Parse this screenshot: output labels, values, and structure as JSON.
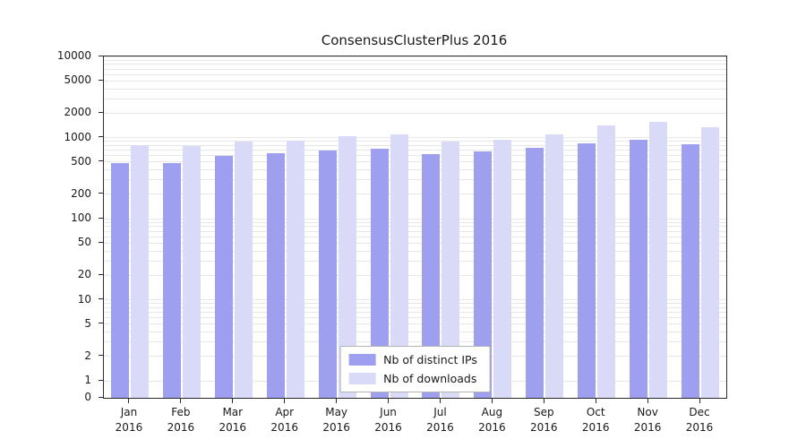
{
  "chart_data": {
    "type": "bar",
    "title": "ConsensusClusterPlus 2016",
    "year": "2016",
    "categories": [
      "Jan",
      "Feb",
      "Mar",
      "Apr",
      "May",
      "Jun",
      "Jul",
      "Aug",
      "Sep",
      "Oct",
      "Nov",
      "Dec"
    ],
    "series": [
      {
        "name": "Nb of distinct IPs",
        "color": "#9f9ff0",
        "values": [
          480,
          480,
          590,
          640,
          700,
          720,
          620,
          670,
          740,
          850,
          950,
          830
        ]
      },
      {
        "name": "Nb of downloads",
        "color": "#d9d9f8",
        "values": [
          800,
          780,
          900,
          920,
          1050,
          1080,
          890,
          950,
          1080,
          1400,
          1550,
          1350
        ]
      }
    ],
    "yticks": [
      0,
      1,
      2,
      5,
      10,
      20,
      50,
      100,
      200,
      500,
      1000,
      2000,
      5000,
      10000
    ],
    "yscale": "symlog",
    "ylim": [
      0,
      10000
    ],
    "xlabel": "",
    "ylabel": "",
    "grid": "horizontal-minor",
    "legend_position": "bottom-center-inside"
  }
}
